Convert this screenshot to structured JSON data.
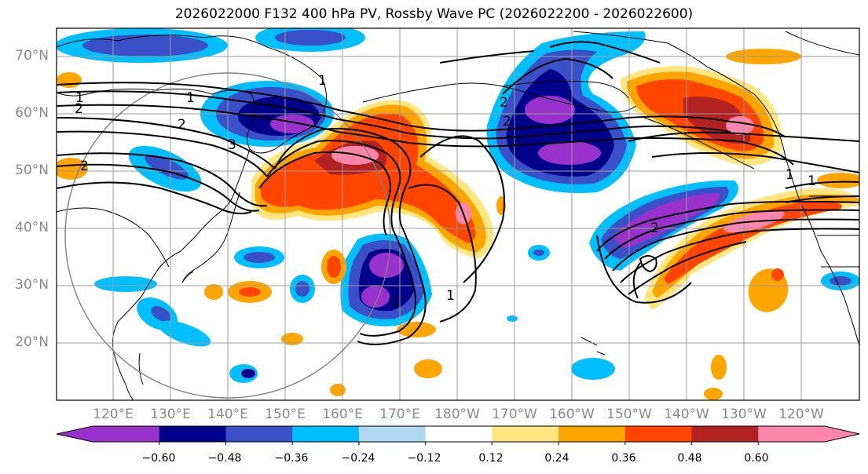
{
  "title": "2026022000 F132 400 hPa PV, Rossby Wave PC (2026022200 - 2026022600)",
  "lat_labels": [
    "70°N",
    "60°N",
    "50°N",
    "40°N",
    "30°N",
    "20°N"
  ],
  "lon_labels": [
    "120°E",
    "130°E",
    "140°E",
    "150°E",
    "160°E",
    "170°E",
    "180°W",
    "170°W",
    "160°W",
    "150°W",
    "140°W",
    "130°W",
    "120°W"
  ],
  "contour_labels": [
    "1",
    "1",
    "1",
    "2",
    "2",
    "2",
    "3",
    "2",
    "2",
    "1",
    "1",
    "1",
    "1",
    "2"
  ],
  "colorbar": {
    "colors": [
      "#9932cc",
      "#00008b",
      "#3a50c8",
      "#00bfff",
      "#add8f0",
      "#ffffff",
      "#ffe680",
      "#ffa500",
      "#ff4500",
      "#b22222",
      "#ff85ad"
    ],
    "tick_labels": [
      "−0.60",
      "−0.48",
      "−0.36",
      "−0.24",
      "−0.12",
      "0.12",
      "0.24",
      "0.36",
      "0.48",
      "0.60"
    ]
  }
}
